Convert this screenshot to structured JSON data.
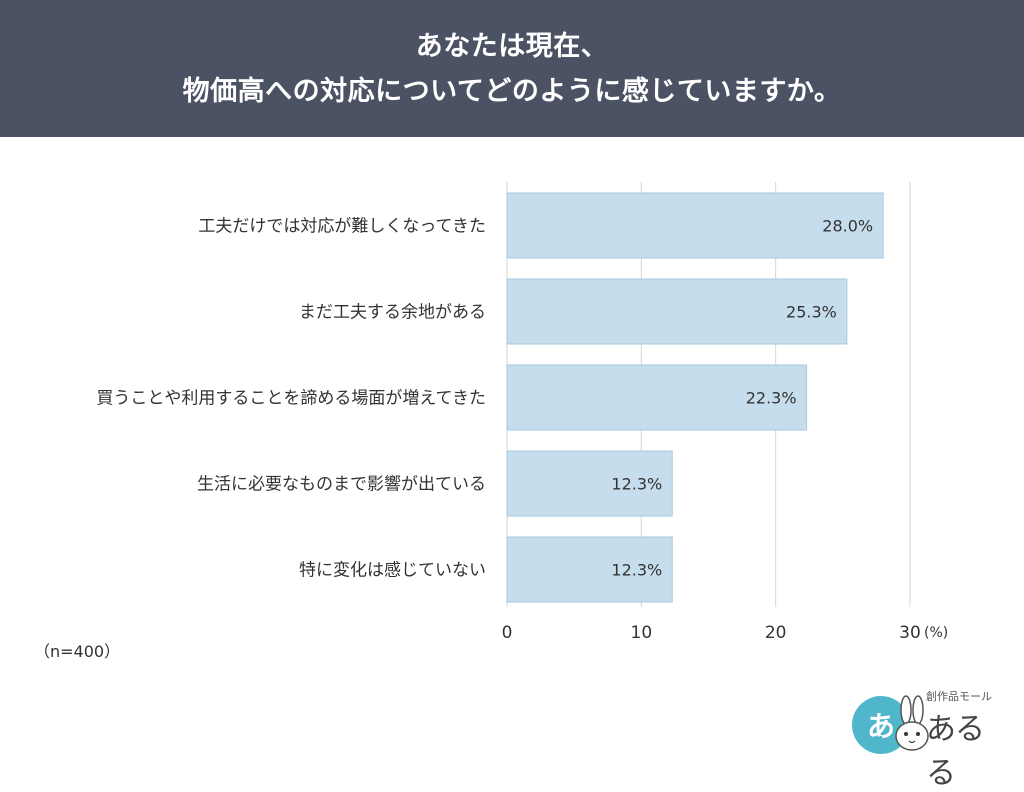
{
  "header": {
    "line1": "あなたは現在、",
    "line2": "物価高への対応についてどのように感じていますか。"
  },
  "note": "（n=400）",
  "chart_data": {
    "type": "bar",
    "orientation": "horizontal",
    "categories": [
      "工夫だけでは対応が難しくなってきた",
      "まだ工夫する余地がある",
      "買うことや利用することを諦める場面が増えてきた",
      "生活に必要なものまで影響が出ている",
      "特に変化は感じていない"
    ],
    "values": [
      28.0,
      25.3,
      22.3,
      12.3,
      12.3
    ],
    "value_labels": [
      "28.0%",
      "25.3%",
      "22.3%",
      "12.3%",
      "12.3%"
    ],
    "xticks": [
      "0",
      "10",
      "20",
      "30"
    ],
    "xunit": "(%)",
    "xlim": [
      0,
      30
    ],
    "grid": true,
    "colors": {
      "bar": "#c5dded",
      "bar_edge": "#a9c8dc",
      "grid": "#d5d5d5"
    }
  },
  "logo": {
    "circle_text": "あ",
    "sub": "創作品モール",
    "main": "あるる",
    "icon": "rabbit-icon"
  }
}
